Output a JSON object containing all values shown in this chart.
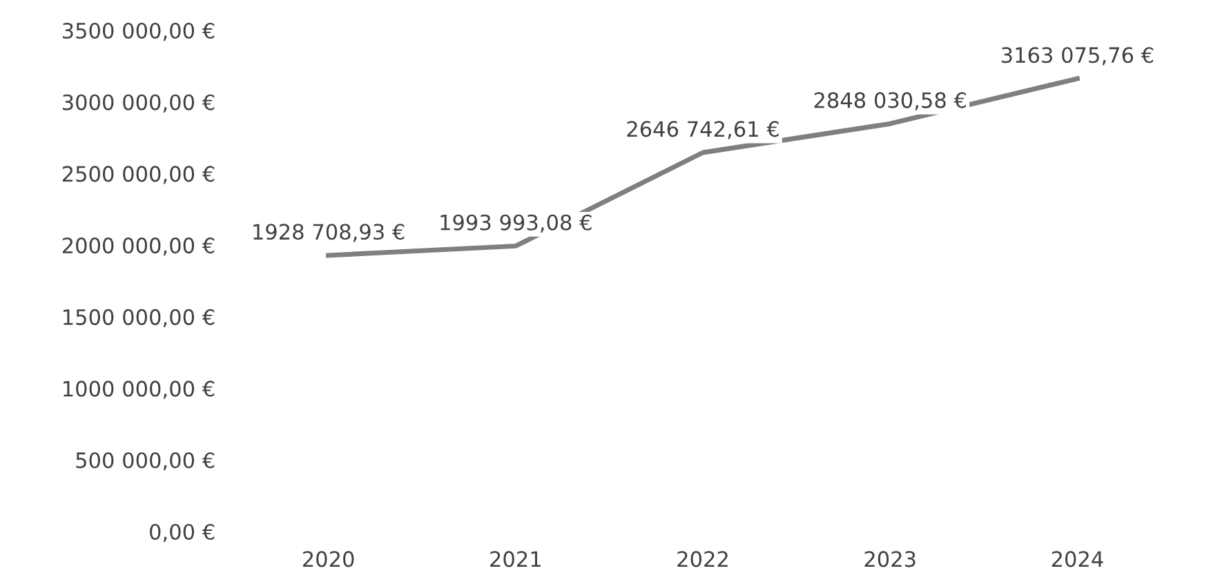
{
  "chart_data": {
    "type": "line",
    "categories": [
      "2020",
      "2021",
      "2022",
      "2023",
      "2024"
    ],
    "series": [
      {
        "color": "#7f7f7f",
        "values": [
          1928708.93,
          1993993.08,
          2646742.61,
          2848030.58,
          3163075.76
        ],
        "value_labels": [
          "1928 708,93 €",
          "1993 993,08 €",
          "2646 742,61 €",
          "2848 030,58 €",
          "3163 075,76 €"
        ]
      }
    ],
    "ylim": [
      0,
      3500000
    ],
    "yticks": [
      {
        "value": 0,
        "label": "0,00 €"
      },
      {
        "value": 500000,
        "label": "500 000,00 €"
      },
      {
        "value": 1000000,
        "label": "1000 000,00 €"
      },
      {
        "value": 1500000,
        "label": "1500 000,00 €"
      },
      {
        "value": 2000000,
        "label": "2000 000,00 €"
      },
      {
        "value": 2500000,
        "label": "2500 000,00 €"
      },
      {
        "value": 3000000,
        "label": "3000 000,00 €"
      },
      {
        "value": 3500000,
        "label": "3500 000,00 €"
      }
    ],
    "grid": false,
    "legend": false,
    "marker": "none",
    "line_style": "solid"
  }
}
